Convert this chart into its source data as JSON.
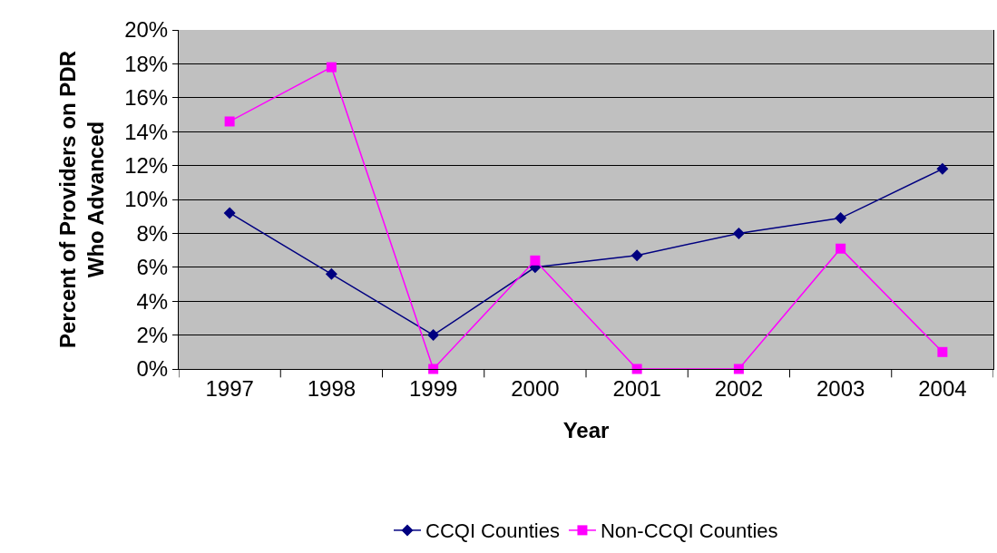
{
  "chart_data": {
    "type": "line",
    "xlabel": "Year",
    "ylabel": "Percent of Providers on PDR\nWho Advanced",
    "categories": [
      "1997",
      "1998",
      "1999",
      "2000",
      "2001",
      "2002",
      "2003",
      "2004"
    ],
    "series": [
      {
        "name": "CCQI Counties",
        "color": "#000080",
        "marker": "diamond",
        "values": [
          9.2,
          5.6,
          2.0,
          6.0,
          6.7,
          8.0,
          8.9,
          11.8
        ]
      },
      {
        "name": "Non-CCQI Counties",
        "color": "#ff00ff",
        "marker": "square",
        "values": [
          14.6,
          17.8,
          0,
          6.4,
          0,
          0,
          7.1,
          1.0
        ]
      }
    ],
    "ylim": [
      0,
      20
    ],
    "yticks": [
      {
        "value": 0,
        "label": "0%"
      },
      {
        "value": 2,
        "label": "2%"
      },
      {
        "value": 4,
        "label": "4%"
      },
      {
        "value": 6,
        "label": "6%"
      },
      {
        "value": 8,
        "label": "8%"
      },
      {
        "value": 10,
        "label": "10%"
      },
      {
        "value": 12,
        "label": "12%"
      },
      {
        "value": 14,
        "label": "14%"
      },
      {
        "value": 16,
        "label": "16%"
      },
      {
        "value": 18,
        "label": "18%"
      },
      {
        "value": 20,
        "label": "20%"
      }
    ],
    "grid": "y",
    "legend": "bottom",
    "line_style": "solid"
  }
}
